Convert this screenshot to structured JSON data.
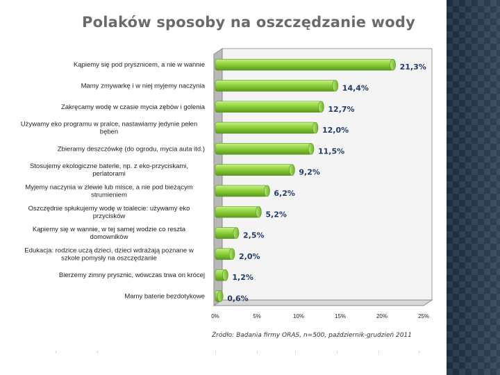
{
  "slide": {
    "title": "Polaków sposoby na oszczędzanie wody",
    "source": "Źródło: Badania firmy ORAS, n=500, październik-grudzień 2011"
  },
  "colors": {
    "bar_light": "#c8f08a",
    "bar_mid": "#8fd23c",
    "bar_dark": "#5a9a1c",
    "value_text": "#1f3a6a",
    "side_panel": "#1e3348"
  },
  "chart_data": {
    "type": "bar",
    "orientation": "horizontal",
    "title": "Polaków sposoby na oszczędzanie wody",
    "xlabel": "",
    "ylabel": "",
    "xlim": [
      0,
      25
    ],
    "grid": false,
    "legend": "none",
    "ticks": [
      "0%",
      "5%",
      "10%",
      "15%",
      "20%",
      "25%"
    ],
    "categories": [
      [
        "Kąpiemy się pod prysznicem, a nie w wannie"
      ],
      [
        "Mamy zmywarkę i w niej myjemy naczynia"
      ],
      [
        "Zakręcamy wodę w czasie mycia zębów i golenia"
      ],
      [
        "Używamy eko programu w pralce, nastawiamy jedynie pełen",
        "bęben"
      ],
      [
        "Zbieramy deszczówkę (do ogrodu, mycia auta itd.)"
      ],
      [
        "Stosujemy ekologiczne baterie, np. z eko-przyciskami,",
        "perlatorami"
      ],
      [
        "Myjemy naczynia w zlewie lub misce, a nie pod bieżącym",
        "strumieniem"
      ],
      [
        "Oszczędnie spłukujemy wodę w toalecie: używamy eko",
        "przycisków"
      ],
      [
        "Kąpiemy się w wannie, w tej samej wodzie co reszta",
        "domowników"
      ],
      [
        "Edukacja: rodzice uczą dzieci, dzieci wdrażają poznane w",
        "szkole pomysły na oszczędzanie"
      ],
      [
        "Bierzemy zimny prysznic, wówczas trwa on krócej"
      ],
      [
        "Mamy baterie bezdotykowe"
      ]
    ],
    "values": [
      21.3,
      14.4,
      12.7,
      12.0,
      11.5,
      9.2,
      6.2,
      5.2,
      2.5,
      2.0,
      1.2,
      0.6
    ],
    "value_labels": [
      "21,3%",
      "14,4%",
      "12,7%",
      "12,0%",
      "11,5%",
      "9,2%",
      "6,2%",
      "5,2%",
      "2,5%",
      "2,0%",
      "1,2%",
      "0,6%"
    ]
  }
}
